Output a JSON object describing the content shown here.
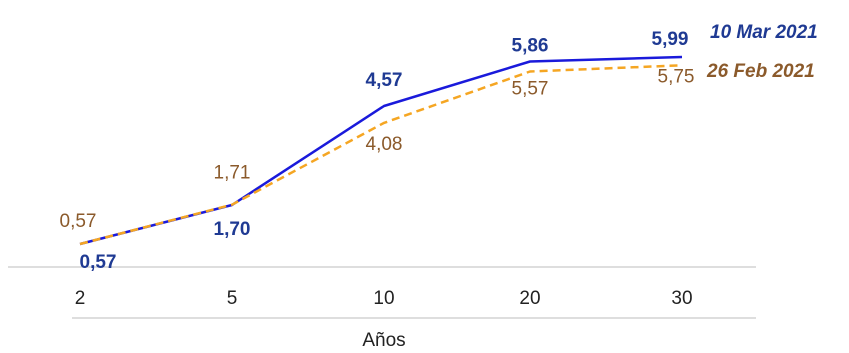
{
  "chart_data": {
    "type": "line",
    "categories": [
      "2",
      "5",
      "10",
      "20",
      "30"
    ],
    "xlabel": "Años",
    "ylabel": "",
    "ylim": [
      0,
      6.5
    ],
    "grid": false,
    "legend": "right, inline at line ends",
    "series": [
      {
        "name": "10 Mar 2021",
        "values": [
          0.57,
          1.7,
          4.57,
          5.86,
          5.99
        ],
        "labels": [
          "0,57",
          "1,70",
          "4,57",
          "5,86",
          "5,99"
        ],
        "color": "#1a1adb",
        "label_color": "#1f3a93",
        "style": "solid"
      },
      {
        "name": "26 Feb 2021",
        "values": [
          0.57,
          1.71,
          4.08,
          5.57,
          5.75
        ],
        "labels": [
          "0,57",
          "1,71",
          "4,08",
          "5,57",
          "5,75"
        ],
        "color": "#f5a623",
        "label_color": "#8b5a2b",
        "style": "dashed"
      }
    ]
  }
}
